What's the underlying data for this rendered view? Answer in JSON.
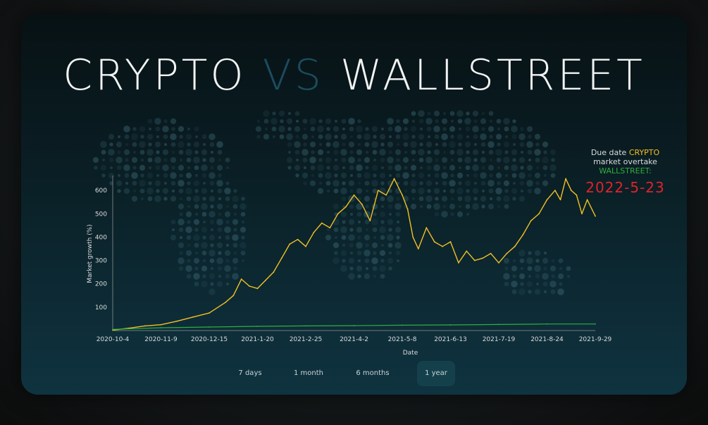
{
  "title": {
    "part1": "CRYPTO",
    "part2": "VS",
    "part3": "WALLSTREET"
  },
  "due_box": {
    "line1_prefix": "Due date",
    "line1_highlight": "CRYPTO",
    "line2": "market overtake",
    "line3": "WALLSTREET:",
    "date": "2022-5-23"
  },
  "range_buttons": [
    {
      "label": "7 days",
      "active": false
    },
    {
      "label": "1 month",
      "active": false
    },
    {
      "label": "6 months",
      "active": false
    },
    {
      "label": "1 year",
      "active": true
    }
  ],
  "colors": {
    "crypto": "#f2c025",
    "wallstreet": "#2fae3f",
    "due_date": "#e0222a",
    "axis_text": "#d8dcdc",
    "axis_line": "#6f7b7e"
  },
  "chart_data": {
    "type": "line",
    "title": "",
    "xlabel": "Date",
    "ylabel": "Market growth (%)",
    "ylim": [
      0,
      700
    ],
    "yticks": [
      100,
      200,
      300,
      400,
      500,
      600
    ],
    "xlim": [
      "2020-10-4",
      "2021-9-29"
    ],
    "xticks": [
      "2020-10-4",
      "2020-11-9",
      "2020-12-15",
      "2021-1-20",
      "2021-2-25",
      "2021-4-2",
      "2021-5-8",
      "2021-6-13",
      "2021-7-19",
      "2021-8-24",
      "2021-9-29"
    ],
    "grid": false,
    "legend": "none",
    "series": [
      {
        "color": "#f2c025",
        "x": [
          "2020-10-4",
          "2020-10-16",
          "2020-10-28",
          "2020-11-9",
          "2020-11-21",
          "2020-12-3",
          "2020-12-15",
          "2020-12-27",
          "2021-1-2",
          "2021-1-8",
          "2021-1-14",
          "2021-1-20",
          "2021-1-26",
          "2021-2-1",
          "2021-2-7",
          "2021-2-13",
          "2021-2-19",
          "2021-2-25",
          "2021-3-3",
          "2021-3-9",
          "2021-3-15",
          "2021-3-21",
          "2021-3-27",
          "2021-4-2",
          "2021-4-8",
          "2021-4-14",
          "2021-4-20",
          "2021-4-26",
          "2021-5-2",
          "2021-5-8",
          "2021-5-12",
          "2021-5-16",
          "2021-5-20",
          "2021-5-26",
          "2021-6-1",
          "2021-6-7",
          "2021-6-13",
          "2021-6-19",
          "2021-6-25",
          "2021-7-1",
          "2021-7-7",
          "2021-7-13",
          "2021-7-19",
          "2021-7-25",
          "2021-7-31",
          "2021-8-6",
          "2021-8-12",
          "2021-8-18",
          "2021-8-24",
          "2021-8-30",
          "2021-9-3",
          "2021-9-7",
          "2021-9-11",
          "2021-9-15",
          "2021-9-19",
          "2021-9-23",
          "2021-9-29"
        ],
        "values": [
          2,
          10,
          20,
          25,
          40,
          58,
          75,
          120,
          150,
          220,
          190,
          180,
          215,
          250,
          310,
          370,
          390,
          360,
          420,
          460,
          440,
          500,
          530,
          580,
          540,
          470,
          600,
          580,
          650,
          580,
          520,
          400,
          350,
          440,
          380,
          360,
          380,
          290,
          340,
          300,
          310,
          330,
          290,
          330,
          360,
          410,
          470,
          500,
          560,
          600,
          560,
          650,
          600,
          580,
          500,
          560,
          490
        ]
      },
      {
        "color": "#2fae3f",
        "x": [
          "2020-10-4",
          "2020-11-9",
          "2020-12-15",
          "2021-1-20",
          "2021-2-25",
          "2021-4-2",
          "2021-5-8",
          "2021-6-13",
          "2021-7-19",
          "2021-8-24",
          "2021-9-29"
        ],
        "values": [
          5,
          12,
          15,
          18,
          20,
          21,
          23,
          24,
          26,
          28,
          28
        ]
      }
    ]
  }
}
